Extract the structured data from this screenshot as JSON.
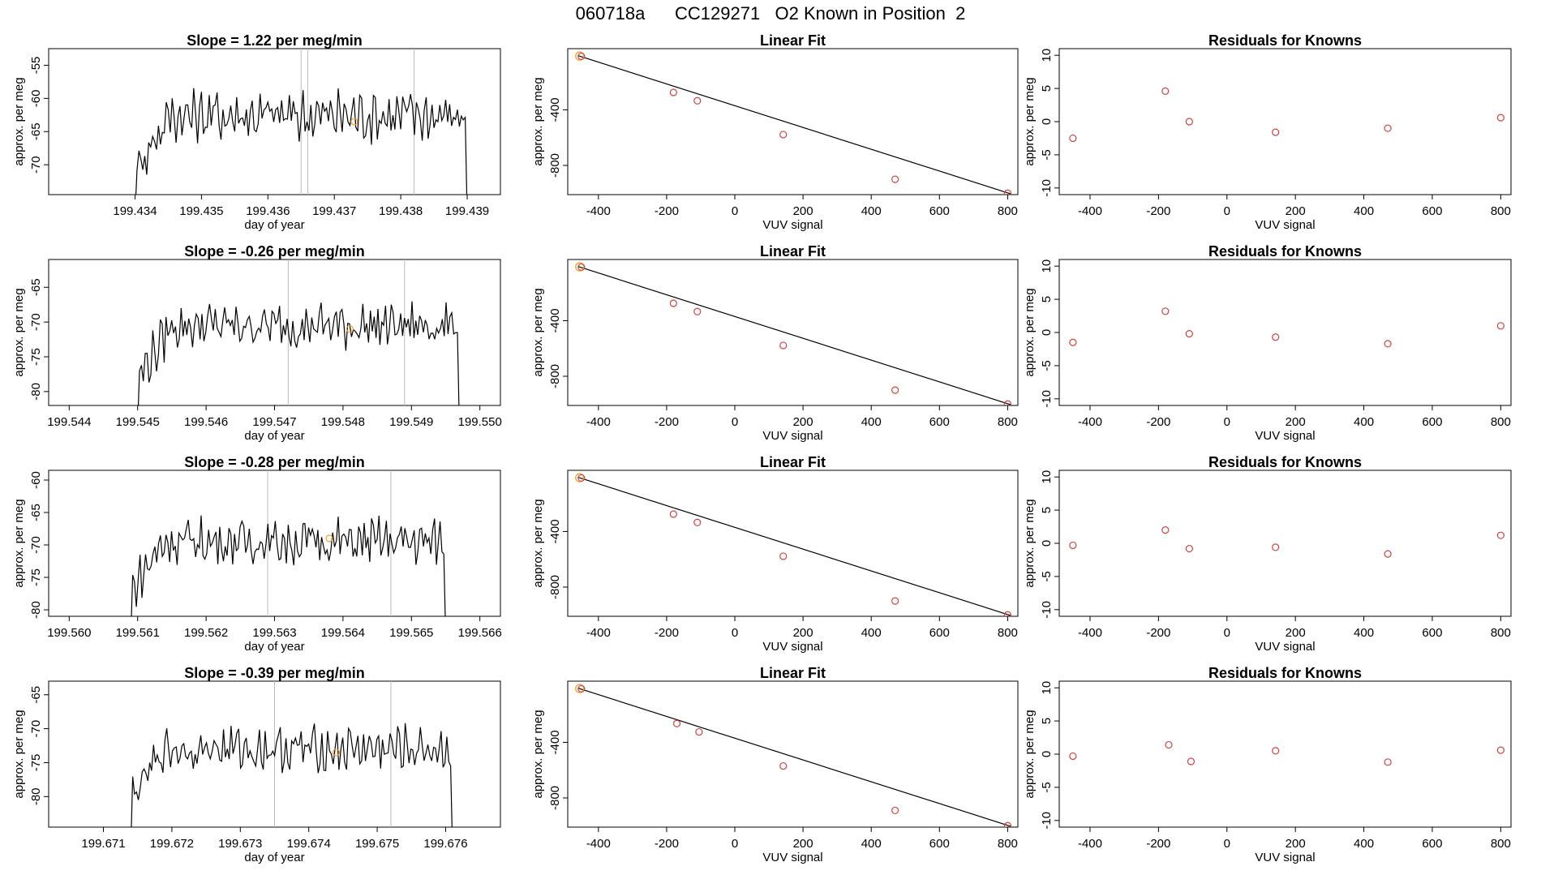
{
  "page_title": {
    "run_id": "060718a",
    "tank_id": "CC129271",
    "description": "O2 Known in Position  2"
  },
  "chart_data": [
    {
      "row": 1,
      "time_series": {
        "type": "line",
        "title": "Slope =  1.22  per meg/min",
        "xlabel": "day of year",
        "ylabel": "approx. per meg",
        "xlim": [
          199.4327,
          199.4395
        ],
        "ylim": [
          -74.5,
          -52.5
        ],
        "xticks": [
          199.434,
          199.435,
          199.436,
          199.437,
          199.438,
          199.439
        ],
        "xtick_labels": [
          "199.434",
          "199.435",
          "199.436",
          "199.437",
          "199.438",
          "199.439"
        ],
        "yticks": [
          -70,
          -65,
          -60,
          -55
        ],
        "ytick_labels": [
          "-70",
          "-65",
          "-60",
          "-55"
        ],
        "vlines": [
          199.4365,
          199.4366,
          199.4382
        ],
        "series_start": 199.434,
        "series_end": 199.439,
        "mean_level": -62.5,
        "amplitude": 3.2,
        "marker": {
          "x": 199.4373,
          "y": -63.5
        }
      },
      "linear_fit": {
        "type": "scatter",
        "title": "Linear Fit",
        "xlabel": "VUV signal",
        "ylabel": "approx. per meg",
        "xlim": [
          -490,
          830
        ],
        "ylim": [
          -1010,
          40
        ],
        "xticks": [
          -400,
          -200,
          0,
          200,
          400,
          600,
          800
        ],
        "xtick_labels": [
          "-400",
          "-200",
          "0",
          "200",
          "400",
          "600",
          "800"
        ],
        "yticks": [
          -400,
          -800
        ],
        "ytick_labels": [
          "-400",
          "-800"
        ],
        "x": [
          -450,
          -180,
          -110,
          142,
          470,
          800
        ],
        "y": [
          -15,
          -275,
          -335,
          -578,
          -900,
          -1000
        ],
        "fit_line": [
          [
            -460,
            -10
          ],
          [
            810,
            -1005
          ]
        ],
        "highlight": [
          -455,
          -13
        ]
      },
      "residuals": {
        "type": "scatter",
        "title": "Residuals for Knowns",
        "xlabel": "VUV signal",
        "ylabel": "approx. per meg",
        "xlim": [
          -490,
          830
        ],
        "ylim": [
          -11,
          11
        ],
        "xticks": [
          -400,
          -200,
          0,
          200,
          400,
          600,
          800
        ],
        "xtick_labels": [
          "-400",
          "-200",
          "0",
          "200",
          "400",
          "600",
          "800"
        ],
        "yticks": [
          -10,
          -5,
          0,
          5,
          10
        ],
        "ytick_labels": [
          "-10",
          "-5",
          "0",
          "5",
          "10"
        ],
        "x": [
          -450,
          -180,
          -110,
          142,
          470,
          800
        ],
        "y": [
          -2.5,
          4.6,
          0.0,
          -1.6,
          -1.0,
          0.6
        ]
      }
    },
    {
      "row": 2,
      "time_series": {
        "type": "line",
        "title": "Slope =  -0.26  per meg/min",
        "xlabel": "day of year",
        "ylabel": "approx. per meg",
        "xlim": [
          199.5437,
          199.5503
        ],
        "ylim": [
          -82,
          -61
        ],
        "xticks": [
          199.544,
          199.545,
          199.546,
          199.547,
          199.548,
          199.549,
          199.55
        ],
        "xtick_labels": [
          "199.544",
          "199.545",
          "199.546",
          "199.547",
          "199.548",
          "199.549",
          "199.550"
        ],
        "yticks": [
          -80,
          -75,
          -70,
          -65
        ],
        "ytick_labels": [
          "-80",
          "-75",
          "-70",
          "-65"
        ],
        "vlines": [
          199.5472,
          199.5489
        ],
        "series_start": 199.545,
        "series_end": 199.5497,
        "mean_level": -70.5,
        "amplitude": 2.6,
        "marker": {
          "x": 199.5481,
          "y": -71.0
        }
      },
      "linear_fit": {
        "type": "scatter",
        "title": "Linear Fit",
        "xlabel": "VUV signal",
        "ylabel": "approx. per meg",
        "xlim": [
          -490,
          830
        ],
        "ylim": [
          -1010,
          40
        ],
        "xticks": [
          -400,
          -200,
          0,
          200,
          400,
          600,
          800
        ],
        "xtick_labels": [
          "-400",
          "-200",
          "0",
          "200",
          "400",
          "600",
          "800"
        ],
        "yticks": [
          -400,
          -800
        ],
        "ytick_labels": [
          "-400",
          "-800"
        ],
        "x": [
          -450,
          -180,
          -110,
          142,
          470,
          800
        ],
        "y": [
          -15,
          -275,
          -335,
          -578,
          -900,
          -1000
        ],
        "fit_line": [
          [
            -460,
            -10
          ],
          [
            810,
            -1005
          ]
        ],
        "highlight": [
          -455,
          -13
        ]
      },
      "residuals": {
        "type": "scatter",
        "title": "Residuals for Knowns",
        "xlabel": "VUV signal",
        "ylabel": "approx. per meg",
        "xlim": [
          -490,
          830
        ],
        "ylim": [
          -11,
          11
        ],
        "xticks": [
          -400,
          -200,
          0,
          200,
          400,
          600,
          800
        ],
        "xtick_labels": [
          "-400",
          "-200",
          "0",
          "200",
          "400",
          "600",
          "800"
        ],
        "yticks": [
          -10,
          -5,
          0,
          5,
          10
        ],
        "ytick_labels": [
          "-10",
          "-5",
          "0",
          "5",
          "10"
        ],
        "x": [
          -450,
          -180,
          -110,
          142,
          470,
          800
        ],
        "y": [
          -1.5,
          3.2,
          -0.2,
          -0.7,
          -1.7,
          1.0
        ]
      }
    },
    {
      "row": 3,
      "time_series": {
        "type": "line",
        "title": "Slope =  -0.28  per meg/min",
        "xlabel": "day of year",
        "ylabel": "approx. per meg",
        "xlim": [
          199.5597,
          199.5663
        ],
        "ylim": [
          -81,
          -58.5
        ],
        "xticks": [
          199.56,
          199.561,
          199.562,
          199.563,
          199.564,
          199.565,
          199.566
        ],
        "xtick_labels": [
          "199.560",
          "199.561",
          "199.562",
          "199.563",
          "199.564",
          "199.565",
          "199.566"
        ],
        "yticks": [
          -80,
          -75,
          -70,
          -65,
          -60
        ],
        "ytick_labels": [
          "-80",
          "-75",
          "-70",
          "-65",
          "-60"
        ],
        "vlines": [
          199.5629,
          199.5647
        ],
        "series_start": 199.5609,
        "series_end": 199.5655,
        "mean_level": -69.5,
        "amplitude": 2.8,
        "marker": {
          "x": 199.5638,
          "y": -69.0
        }
      },
      "linear_fit": {
        "type": "scatter",
        "title": "Linear Fit",
        "xlabel": "VUV signal",
        "ylabel": "approx. per meg",
        "xlim": [
          -490,
          830
        ],
        "ylim": [
          -1010,
          40
        ],
        "xticks": [
          -400,
          -200,
          0,
          200,
          400,
          600,
          800
        ],
        "xtick_labels": [
          "-400",
          "-200",
          "0",
          "200",
          "400",
          "600",
          "800"
        ],
        "yticks": [
          -400,
          -800
        ],
        "ytick_labels": [
          "-400",
          "-800"
        ],
        "x": [
          -450,
          -180,
          -110,
          142,
          470,
          800
        ],
        "y": [
          -15,
          -275,
          -335,
          -578,
          -900,
          -1000
        ],
        "fit_line": [
          [
            -460,
            -10
          ],
          [
            810,
            -1005
          ]
        ],
        "highlight": [
          -455,
          -13
        ]
      },
      "residuals": {
        "type": "scatter",
        "title": "Residuals for Knowns",
        "xlabel": "VUV signal",
        "ylabel": "approx. per meg",
        "xlim": [
          -490,
          830
        ],
        "ylim": [
          -11,
          11
        ],
        "xticks": [
          -400,
          -200,
          0,
          200,
          400,
          600,
          800
        ],
        "xtick_labels": [
          "-400",
          "-200",
          "0",
          "200",
          "400",
          "600",
          "800"
        ],
        "yticks": [
          -10,
          -5,
          0,
          5,
          10
        ],
        "ytick_labels": [
          "-10",
          "-5",
          "0",
          "5",
          "10"
        ],
        "x": [
          -450,
          -180,
          -110,
          142,
          470,
          800
        ],
        "y": [
          -0.3,
          2.0,
          -0.8,
          -0.6,
          -1.6,
          1.2
        ]
      }
    },
    {
      "row": 4,
      "time_series": {
        "type": "line",
        "title": "Slope =  -0.39  per meg/min",
        "xlabel": "day of year",
        "ylabel": "approx. per meg",
        "xlim": [
          199.6702,
          199.6768
        ],
        "ylim": [
          -84.5,
          -63
        ],
        "xticks": [
          199.671,
          199.672,
          199.673,
          199.674,
          199.675,
          199.676
        ],
        "xtick_labels": [
          "199.671",
          "199.672",
          "199.673",
          "199.674",
          "199.675",
          "199.676"
        ],
        "yticks": [
          -80,
          -75,
          -70,
          -65
        ],
        "ytick_labels": [
          "-80",
          "-75",
          "-70",
          "-65"
        ],
        "vlines": [
          199.6735,
          199.6752
        ],
        "series_start": 199.6714,
        "series_end": 199.6761,
        "mean_level": -73.0,
        "amplitude": 2.6,
        "marker": {
          "x": 199.6744,
          "y": -73.5
        }
      },
      "linear_fit": {
        "type": "scatter",
        "title": "Linear Fit",
        "xlabel": "VUV signal",
        "ylabel": "approx. per meg",
        "xlim": [
          -490,
          830
        ],
        "ylim": [
          -1010,
          40
        ],
        "xticks": [
          -400,
          -200,
          0,
          200,
          400,
          600,
          800
        ],
        "xtick_labels": [
          "-400",
          "-200",
          "0",
          "200",
          "400",
          "600",
          "800"
        ],
        "yticks": [
          -400,
          -800
        ],
        "ytick_labels": [
          "-400",
          "-800"
        ],
        "x": [
          -450,
          -170,
          -105,
          142,
          470,
          800
        ],
        "y": [
          -15,
          -265,
          -325,
          -570,
          -890,
          -1000
        ],
        "fit_line": [
          [
            -460,
            -10
          ],
          [
            810,
            -1005
          ]
        ],
        "highlight": [
          -455,
          -13
        ]
      },
      "residuals": {
        "type": "scatter",
        "title": "Residuals for Knowns",
        "xlabel": "VUV signal",
        "ylabel": "approx. per meg",
        "xlim": [
          -490,
          830
        ],
        "ylim": [
          -11,
          11
        ],
        "xticks": [
          -400,
          -200,
          0,
          200,
          400,
          600,
          800
        ],
        "xtick_labels": [
          "-400",
          "-200",
          "0",
          "200",
          "400",
          "600",
          "800"
        ],
        "yticks": [
          -10,
          -5,
          0,
          5,
          10
        ],
        "ytick_labels": [
          "-10",
          "-5",
          "0",
          "5",
          "10"
        ],
        "x": [
          -450,
          -170,
          -105,
          142,
          470,
          800
        ],
        "y": [
          -0.3,
          1.4,
          -1.1,
          0.5,
          -1.2,
          0.6
        ]
      }
    }
  ],
  "colors": {
    "line": "#000000",
    "point": "#d04040",
    "highlight": "#f0a030",
    "vline": "#bbbbbb"
  }
}
